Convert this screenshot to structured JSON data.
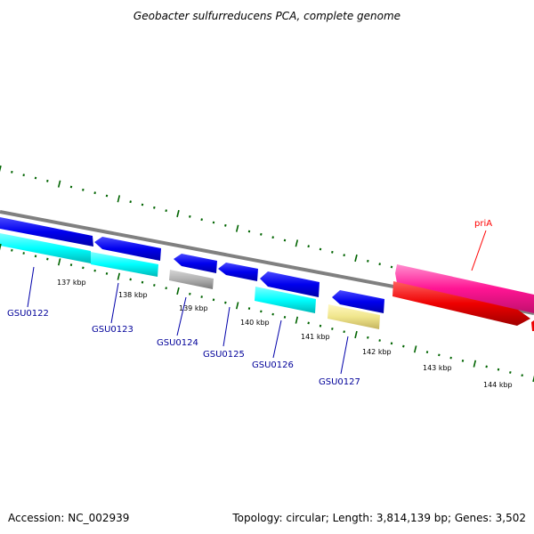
{
  "title": "Geobacter sulfurreducens PCA, complete genome",
  "footer": {
    "accession": "Accession: NC_002939",
    "summary": "Topology: circular; Length: 3,814,139 bp; Genes: 3,502"
  },
  "scale": {
    "unit": "kbp",
    "labels": [
      "137 kbp",
      "138 kbp",
      "139 kbp",
      "140 kbp",
      "141 kbp",
      "142 kbp",
      "143 kbp",
      "144 kbp"
    ]
  },
  "genes": [
    {
      "name": "GSU0122",
      "color": "#00ffff"
    },
    {
      "name": "GSU0123",
      "color": "#00ffff"
    },
    {
      "name": "GSU0124",
      "color": "#a6a6a6"
    },
    {
      "name": "GSU0125",
      "color": "#0000ff"
    },
    {
      "name": "GSU0126",
      "color": "#00ffff"
    },
    {
      "name": "GSU0127",
      "color": "#f0e68c"
    },
    {
      "name": "priA",
      "color": "#ff1493"
    }
  ],
  "colors": {
    "label_gene": "#000099",
    "label_priA": "#ff0000",
    "ticks": "#006400",
    "backbone": "#808080",
    "forward_blue": "#0000ee",
    "red_gene": "#ff0000"
  }
}
